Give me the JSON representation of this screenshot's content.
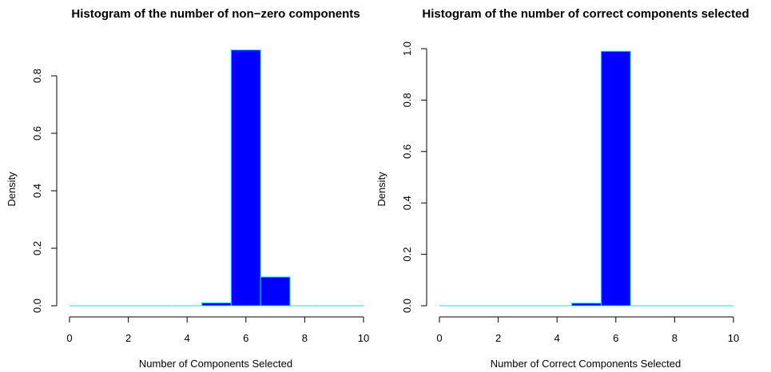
{
  "chart_data": [
    {
      "type": "bar",
      "title": "Histogram of the number of non−zero components",
      "xlabel": "Number of Components Selected",
      "ylabel": "Density",
      "xlim": [
        0,
        10
      ],
      "ylim": [
        0,
        0.9
      ],
      "x_ticks": [
        "0",
        "2",
        "4",
        "6",
        "8",
        "10"
      ],
      "y_ticks": [
        "0.0",
        "0.2",
        "0.4",
        "0.6",
        "0.8"
      ],
      "bins": [
        [
          0,
          0.5
        ],
        [
          0.5,
          1.5
        ],
        [
          1.5,
          2.5
        ],
        [
          2.5,
          3.5
        ],
        [
          3.5,
          4.5
        ],
        [
          4.5,
          5.5
        ],
        [
          5.5,
          6.5
        ],
        [
          6.5,
          7.5
        ],
        [
          7.5,
          8.5
        ],
        [
          8.5,
          9.5
        ],
        [
          9.5,
          10
        ]
      ],
      "values": [
        0,
        0,
        0,
        0,
        0,
        0.01,
        0.89,
        0.1,
        0,
        0,
        0
      ],
      "bar_fill": "#0000ff",
      "bar_border": "#00e5ee",
      "grid": false
    },
    {
      "type": "bar",
      "title": "Histogram of the number of correct components selected",
      "xlabel": "Number of Correct Components Selected",
      "ylabel": "Density",
      "xlim": [
        0,
        10
      ],
      "ylim": [
        0,
        1.0
      ],
      "x_ticks": [
        "0",
        "2",
        "4",
        "6",
        "8",
        "10"
      ],
      "y_ticks": [
        "0.0",
        "0.2",
        "0.4",
        "0.6",
        "0.8",
        "1.0"
      ],
      "bins": [
        [
          0,
          0.5
        ],
        [
          0.5,
          1.5
        ],
        [
          1.5,
          2.5
        ],
        [
          2.5,
          3.5
        ],
        [
          3.5,
          4.5
        ],
        [
          4.5,
          5.5
        ],
        [
          5.5,
          6.5
        ],
        [
          6.5,
          7.5
        ],
        [
          7.5,
          8.5
        ],
        [
          8.5,
          9.5
        ],
        [
          9.5,
          10
        ]
      ],
      "values": [
        0,
        0,
        0,
        0,
        0,
        0.01,
        0.99,
        0,
        0,
        0,
        0
      ],
      "bar_fill": "#0000ff",
      "bar_border": "#00e5ee",
      "grid": false
    }
  ]
}
